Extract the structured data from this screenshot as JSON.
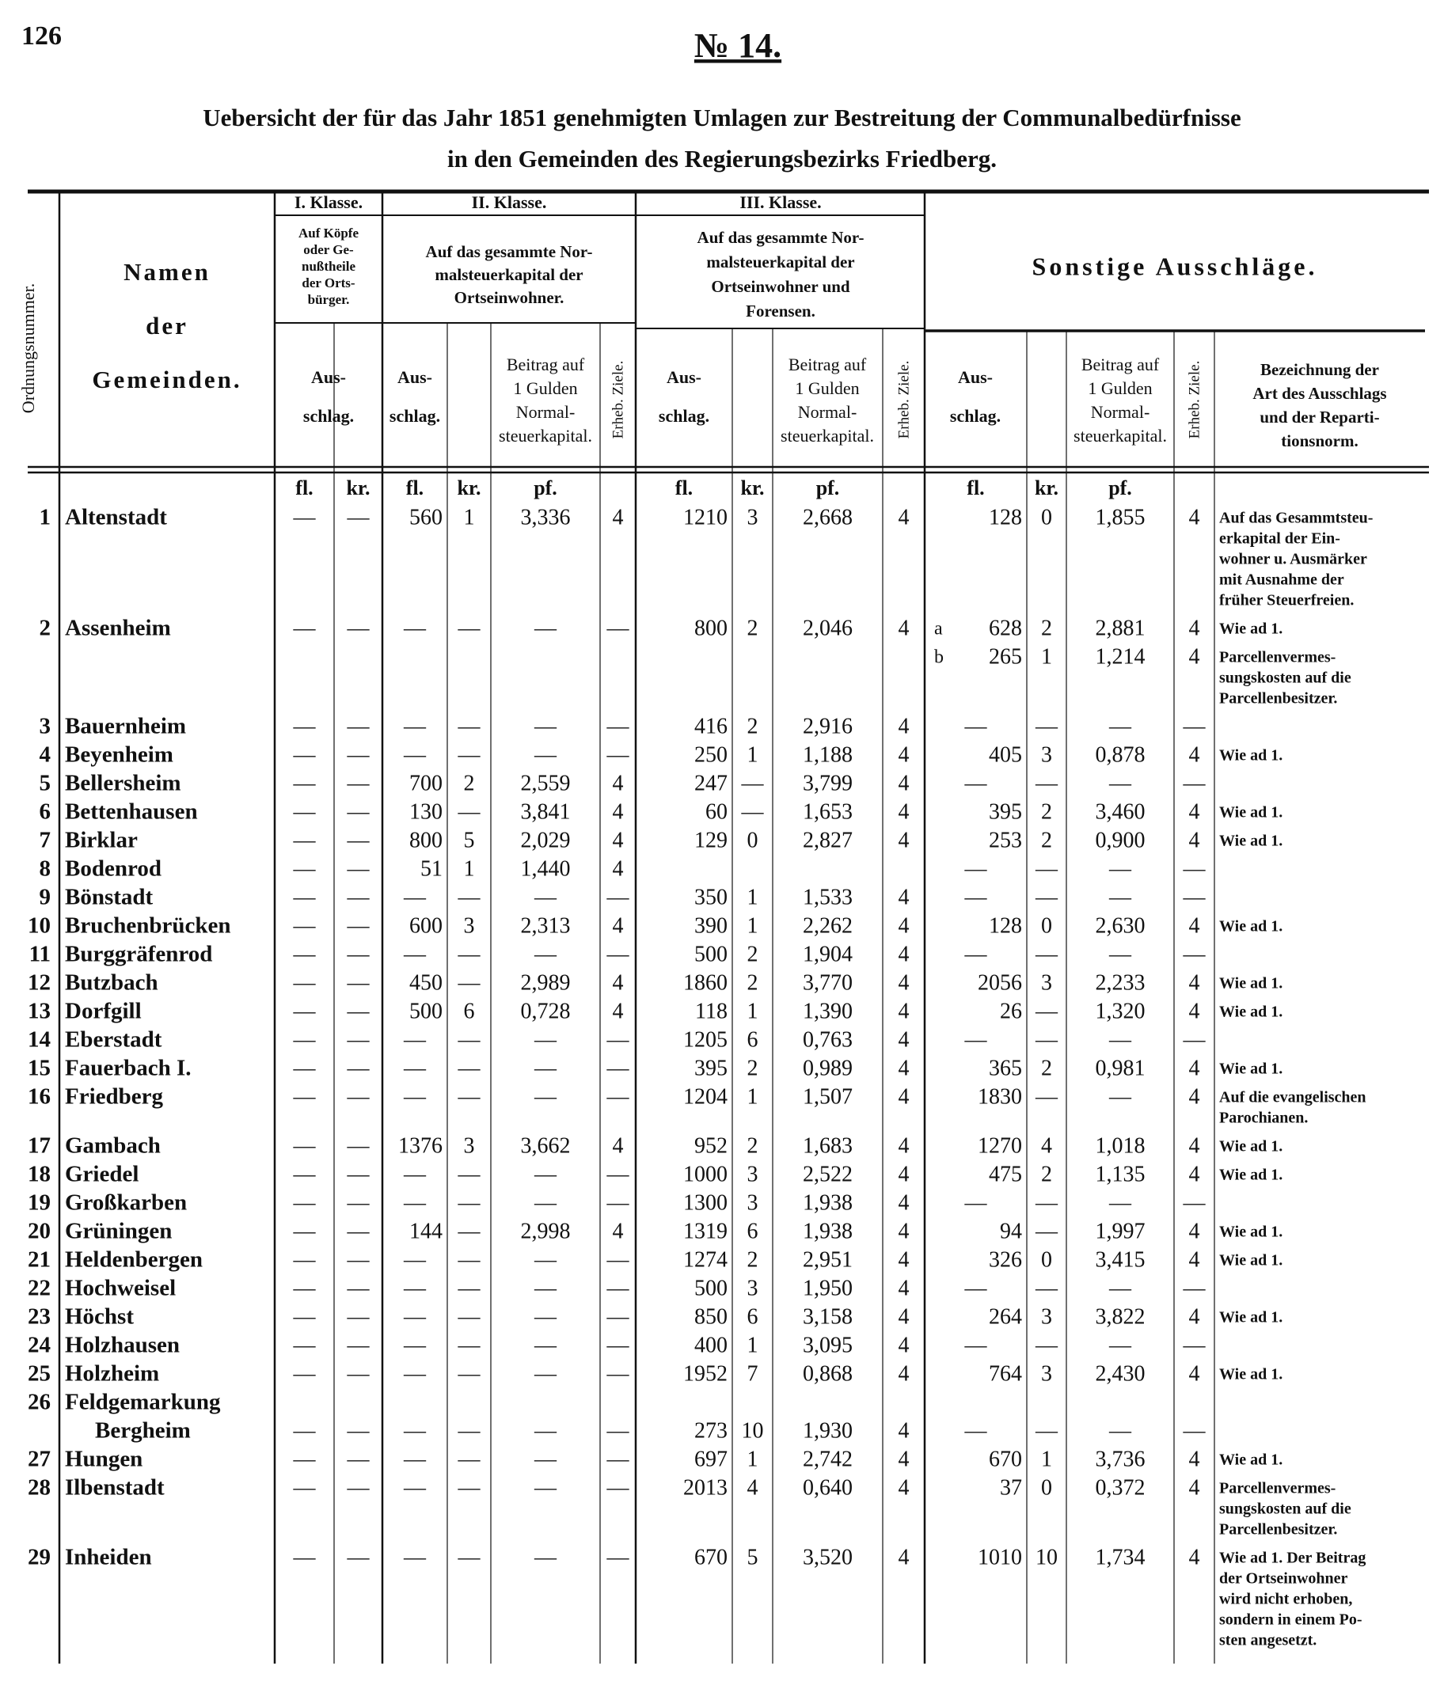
{
  "page_number": "126",
  "doc_number": "№ 14.",
  "title": [
    "Uebersicht der für das Jahr 1851 genehmigten Umlagen zur Bestreitung der Communalbedürfnisse",
    "in den Gemeinden des Regierungsbezirks Friedberg."
  ],
  "table": {
    "header": {
      "ordnungsnummer": "Ordnungsnummer.",
      "namen": [
        "Namen",
        "der",
        "Gemeinden."
      ],
      "klasse_1": {
        "title": "I. Klasse.",
        "basis": [
          "Auf Köpfe",
          "oder Ge-",
          "nußtheile",
          "der Orts-",
          "bürger."
        ],
        "ausschlag": [
          "Aus-",
          "schlag."
        ],
        "units": [
          "fl.",
          "kr."
        ]
      },
      "klasse_2": {
        "title": "II. Klasse.",
        "basis": [
          "Auf das gesammte Nor-",
          "malsteuerkapital der",
          "Ortseinwohner."
        ],
        "ausschlag": [
          "Aus-",
          "schlag."
        ],
        "beitrag": [
          "Beitrag auf",
          "1 Gulden",
          "Normal-",
          "steuerkapital."
        ],
        "ziele": "Erheb. Ziele.",
        "units": [
          "fl.",
          "kr.",
          "pf."
        ]
      },
      "klasse_3": {
        "title": "III. Klasse.",
        "basis": [
          "Auf das gesammte Nor-",
          "malsteuerkapital der",
          "Ortseinwohner und",
          "Forensen."
        ],
        "ausschlag": [
          "Aus-",
          "schlag."
        ],
        "beitrag": [
          "Beitrag auf",
          "1 Gulden",
          "Normal-",
          "steuerkapital."
        ],
        "ziele": "Erheb. Ziele.",
        "units": [
          "fl.",
          "kr.",
          "pf."
        ]
      },
      "sonstige": {
        "title": "Sonstige Ausschläge.",
        "ausschlag": [
          "Aus-",
          "schlag."
        ],
        "beitrag": [
          "Beitrag auf",
          "1 Gulden",
          "Normal-",
          "steuerkapital."
        ],
        "ziele": "Erheb. Ziele.",
        "bezeichnung": [
          "Bezeichnung der",
          "Art des Ausschlags",
          "und der Reparti-",
          "tionsnorm."
        ],
        "units": [
          "fl.",
          "kr.",
          "pf."
        ]
      }
    },
    "rows": [
      {
        "nr": "1",
        "name": [
          "Altenstadt"
        ],
        "i": [
          "—",
          "—"
        ],
        "ii": [
          "560",
          "1",
          "3,336",
          "4"
        ],
        "iii": [
          "1210",
          "3",
          "2,668",
          "4"
        ],
        "s": [
          {
            "values": [
              "128",
              "0",
              "1,855",
              "4"
            ],
            "note": [
              "Auf das Gesammtsteu-",
              "erkapital der Ein-",
              "wohner u. Ausmärker",
              "mit Ausnahme der",
              "früher Steuerfreien."
            ]
          }
        ]
      },
      {
        "nr": "2",
        "name": [
          "Assenheim"
        ],
        "i": [
          "—",
          "—"
        ],
        "ii": [
          "—",
          "—",
          "—",
          "—"
        ],
        "iii": [
          "800",
          "2",
          "2,046",
          "4"
        ],
        "s": [
          {
            "label": "a",
            "values": [
              "628",
              "2",
              "2,881",
              "4"
            ],
            "note": [
              "Wie ad 1."
            ]
          },
          {
            "label": "b",
            "values": [
              "265",
              "1",
              "1,214",
              "4"
            ],
            "note": [
              "Parcellenvermes-",
              "sungskosten auf die",
              "Parcellenbesitzer."
            ]
          }
        ]
      },
      {
        "nr": "3",
        "name": [
          "Bauernheim"
        ],
        "i": [
          "—",
          "—"
        ],
        "ii": [
          "—",
          "—",
          "—",
          "—"
        ],
        "iii": [
          "416",
          "2",
          "2,916",
          "4"
        ],
        "s": [
          {
            "values": [
              "—",
              "—",
              "—",
              "—"
            ]
          }
        ]
      },
      {
        "nr": "4",
        "name": [
          "Beyenheim"
        ],
        "i": [
          "—",
          "—"
        ],
        "ii": [
          "—",
          "—",
          "—",
          "—"
        ],
        "iii": [
          "250",
          "1",
          "1,188",
          "4"
        ],
        "s": [
          {
            "values": [
              "405",
              "3",
              "0,878",
              "4"
            ],
            "note": [
              "Wie ad 1."
            ]
          }
        ]
      },
      {
        "nr": "5",
        "name": [
          "Bellersheim"
        ],
        "i": [
          "—",
          "—"
        ],
        "ii": [
          "700",
          "2",
          "2,559",
          "4"
        ],
        "iii": [
          "247",
          "—",
          "3,799",
          "4"
        ],
        "s": [
          {
            "values": [
              "—",
              "—",
              "—",
              "—"
            ]
          }
        ]
      },
      {
        "nr": "6",
        "name": [
          "Bettenhausen"
        ],
        "i": [
          "—",
          "—"
        ],
        "ii": [
          "130",
          "—",
          "3,841",
          "4"
        ],
        "iii": [
          "60",
          "—",
          "1,653",
          "4"
        ],
        "s": [
          {
            "values": [
              "395",
              "2",
              "3,460",
              "4"
            ],
            "note": [
              "Wie ad 1."
            ]
          }
        ]
      },
      {
        "nr": "7",
        "name": [
          "Birklar"
        ],
        "i": [
          "—",
          "—"
        ],
        "ii": [
          "800",
          "5",
          "2,029",
          "4"
        ],
        "iii": [
          "129",
          "0",
          "2,827",
          "4"
        ],
        "s": [
          {
            "values": [
              "253",
              "2",
              "0,900",
              "4"
            ],
            "note": [
              "Wie ad 1."
            ]
          }
        ]
      },
      {
        "nr": "8",
        "name": [
          "Bodenrod"
        ],
        "i": [
          "—",
          "—"
        ],
        "ii": [
          "51",
          "1",
          "1,440",
          "4"
        ],
        "iii": null,
        "s": [
          {
            "values": [
              "—",
              "—",
              "—",
              "—"
            ]
          }
        ]
      },
      {
        "nr": "9",
        "name": [
          "Bönstadt"
        ],
        "i": [
          "—",
          "—"
        ],
        "ii": [
          "—",
          "—",
          "—",
          "—"
        ],
        "iii": [
          "350",
          "1",
          "1,533",
          "4"
        ],
        "s": [
          {
            "values": [
              "—",
              "—",
              "—",
              "—"
            ]
          }
        ]
      },
      {
        "nr": "10",
        "name": [
          "Bruchenbrücken"
        ],
        "i": [
          "—",
          "—"
        ],
        "ii": [
          "600",
          "3",
          "2,313",
          "4"
        ],
        "iii": [
          "390",
          "1",
          "2,262",
          "4"
        ],
        "s": [
          {
            "values": [
              "128",
              "0",
              "2,630",
              "4"
            ],
            "note": [
              "Wie ad 1."
            ]
          }
        ]
      },
      {
        "nr": "11",
        "name": [
          "Burggräfenrod"
        ],
        "i": [
          "—",
          "—"
        ],
        "ii": [
          "—",
          "—",
          "—",
          "—"
        ],
        "iii": [
          "500",
          "2",
          "1,904",
          "4"
        ],
        "s": [
          {
            "values": [
              "—",
              "—",
              "—",
              "—"
            ]
          }
        ]
      },
      {
        "nr": "12",
        "name": [
          "Butzbach"
        ],
        "i": [
          "—",
          "—"
        ],
        "ii": [
          "450",
          "—",
          "2,989",
          "4"
        ],
        "iii": [
          "1860",
          "2",
          "3,770",
          "4"
        ],
        "s": [
          {
            "values": [
              "2056",
              "3",
              "2,233",
              "4"
            ],
            "note": [
              "Wie ad 1."
            ]
          }
        ]
      },
      {
        "nr": "13",
        "name": [
          "Dorfgill"
        ],
        "i": [
          "—",
          "—"
        ],
        "ii": [
          "500",
          "6",
          "0,728",
          "4"
        ],
        "iii": [
          "118",
          "1",
          "1,390",
          "4"
        ],
        "s": [
          {
            "values": [
              "26",
              "—",
              "1,320",
              "4"
            ],
            "note": [
              "Wie ad 1."
            ]
          }
        ]
      },
      {
        "nr": "14",
        "name": [
          "Eberstadt"
        ],
        "i": [
          "—",
          "—"
        ],
        "ii": [
          "—",
          "—",
          "—",
          "—"
        ],
        "iii": [
          "1205",
          "6",
          "0,763",
          "4"
        ],
        "s": [
          {
            "values": [
              "—",
              "—",
              "—",
              "—"
            ]
          }
        ]
      },
      {
        "nr": "15",
        "name": [
          "Fauerbach I."
        ],
        "i": [
          "—",
          "—"
        ],
        "ii": [
          "—",
          "—",
          "—",
          "—"
        ],
        "iii": [
          "395",
          "2",
          "0,989",
          "4"
        ],
        "s": [
          {
            "values": [
              "365",
              "2",
              "0,981",
              "4"
            ],
            "note": [
              "Wie ad 1."
            ]
          }
        ]
      },
      {
        "nr": "16",
        "name": [
          "Friedberg"
        ],
        "i": [
          "—",
          "—"
        ],
        "ii": [
          "—",
          "—",
          "—",
          "—"
        ],
        "iii": [
          "1204",
          "1",
          "1,507",
          "4"
        ],
        "s": [
          {
            "values": [
              "1830",
              "—",
              "—",
              "4"
            ],
            "note": [
              "Auf die evangelischen",
              "Parochianen."
            ]
          }
        ]
      },
      {
        "nr": "17",
        "name": [
          "Gambach"
        ],
        "i": [
          "—",
          "—"
        ],
        "ii": [
          "1376",
          "3",
          "3,662",
          "4"
        ],
        "iii": [
          "952",
          "2",
          "1,683",
          "4"
        ],
        "s": [
          {
            "values": [
              "1270",
              "4",
              "1,018",
              "4"
            ],
            "note": [
              "Wie ad 1."
            ]
          }
        ]
      },
      {
        "nr": "18",
        "name": [
          "Griedel"
        ],
        "i": [
          "—",
          "—"
        ],
        "ii": [
          "—",
          "—",
          "—",
          "—"
        ],
        "iii": [
          "1000",
          "3",
          "2,522",
          "4"
        ],
        "s": [
          {
            "values": [
              "475",
              "2",
              "1,135",
              "4"
            ],
            "note": [
              "Wie ad 1."
            ]
          }
        ]
      },
      {
        "nr": "19",
        "name": [
          "Großkarben"
        ],
        "i": [
          "—",
          "—"
        ],
        "ii": [
          "—",
          "—",
          "—",
          "—"
        ],
        "iii": [
          "1300",
          "3",
          "1,938",
          "4"
        ],
        "s": [
          {
            "values": [
              "—",
              "—",
              "—",
              "—"
            ]
          }
        ]
      },
      {
        "nr": "20",
        "name": [
          "Grüningen"
        ],
        "i": [
          "—",
          "—"
        ],
        "ii": [
          "144",
          "—",
          "2,998",
          "4"
        ],
        "iii": [
          "1319",
          "6",
          "1,938",
          "4"
        ],
        "s": [
          {
            "values": [
              "94",
              "—",
              "1,997",
              "4"
            ],
            "note": [
              "Wie ad 1."
            ]
          }
        ]
      },
      {
        "nr": "21",
        "name": [
          "Heldenbergen"
        ],
        "i": [
          "—",
          "—"
        ],
        "ii": [
          "—",
          "—",
          "—",
          "—"
        ],
        "iii": [
          "1274",
          "2",
          "2,951",
          "4"
        ],
        "s": [
          {
            "values": [
              "326",
              "0",
              "3,415",
              "4"
            ],
            "note": [
              "Wie ad 1."
            ]
          }
        ]
      },
      {
        "nr": "22",
        "name": [
          "Hochweisel"
        ],
        "i": [
          "—",
          "—"
        ],
        "ii": [
          "—",
          "—",
          "—",
          "—"
        ],
        "iii": [
          "500",
          "3",
          "1,950",
          "4"
        ],
        "s": [
          {
            "values": [
              "—",
              "—",
              "—",
              "—"
            ]
          }
        ]
      },
      {
        "nr": "23",
        "name": [
          "Höchst"
        ],
        "i": [
          "—",
          "—"
        ],
        "ii": [
          "—",
          "—",
          "—",
          "—"
        ],
        "iii": [
          "850",
          "6",
          "3,158",
          "4"
        ],
        "s": [
          {
            "values": [
              "264",
              "3",
              "3,822",
              "4"
            ],
            "note": [
              "Wie ad 1."
            ]
          }
        ]
      },
      {
        "nr": "24",
        "name": [
          "Holzhausen"
        ],
        "i": [
          "—",
          "—"
        ],
        "ii": [
          "—",
          "—",
          "—",
          "—"
        ],
        "iii": [
          "400",
          "1",
          "3,095",
          "4"
        ],
        "s": [
          {
            "values": [
              "—",
              "—",
              "—",
              "—"
            ]
          }
        ]
      },
      {
        "nr": "25",
        "name": [
          "Holzheim"
        ],
        "i": [
          "—",
          "—"
        ],
        "ii": [
          "—",
          "—",
          "—",
          "—"
        ],
        "iii": [
          "1952",
          "7",
          "0,868",
          "4"
        ],
        "s": [
          {
            "values": [
              "764",
              "3",
              "2,430",
              "4"
            ],
            "note": [
              "Wie ad 1."
            ]
          }
        ]
      },
      {
        "nr": "26",
        "name": [
          "Feldgemarkung",
          "Bergheim"
        ],
        "i": [
          "—",
          "—"
        ],
        "ii": [
          "—",
          "—",
          "—",
          "—"
        ],
        "iii": [
          "273",
          "10",
          "1,930",
          "4"
        ],
        "s": [
          {
            "values": [
              "—",
              "—",
              "—",
              "—"
            ]
          }
        ]
      },
      {
        "nr": "27",
        "name": [
          "Hungen"
        ],
        "i": [
          "—",
          "—"
        ],
        "ii": [
          "—",
          "—",
          "—",
          "—"
        ],
        "iii": [
          "697",
          "1",
          "2,742",
          "4"
        ],
        "s": [
          {
            "values": [
              "670",
              "1",
              "3,736",
              "4"
            ],
            "note": [
              "Wie ad 1."
            ]
          }
        ]
      },
      {
        "nr": "28",
        "name": [
          "Ilbenstadt"
        ],
        "i": [
          "—",
          "—"
        ],
        "ii": [
          "—",
          "—",
          "—",
          "—"
        ],
        "iii": [
          "2013",
          "4",
          "0,640",
          "4"
        ],
        "s": [
          {
            "values": [
              "37",
              "0",
              "0,372",
              "4"
            ],
            "note": [
              "Parcellenvermes-",
              "sungskosten auf die",
              "Parcellenbesitzer."
            ]
          }
        ]
      },
      {
        "nr": "29",
        "name": [
          "Inheiden"
        ],
        "i": [
          "—",
          "—"
        ],
        "ii": [
          "—",
          "—",
          "—",
          "—"
        ],
        "iii": [
          "670",
          "5",
          "3,520",
          "4"
        ],
        "s": [
          {
            "values": [
              "1010",
              "10",
              "1,734",
              "4"
            ],
            "note": [
              "Wie ad 1. Der Beitrag",
              "der Ortseinwohner",
              "wird nicht erhoben,",
              "sondern in einem Po-",
              "sten angesetzt."
            ]
          }
        ]
      }
    ]
  }
}
